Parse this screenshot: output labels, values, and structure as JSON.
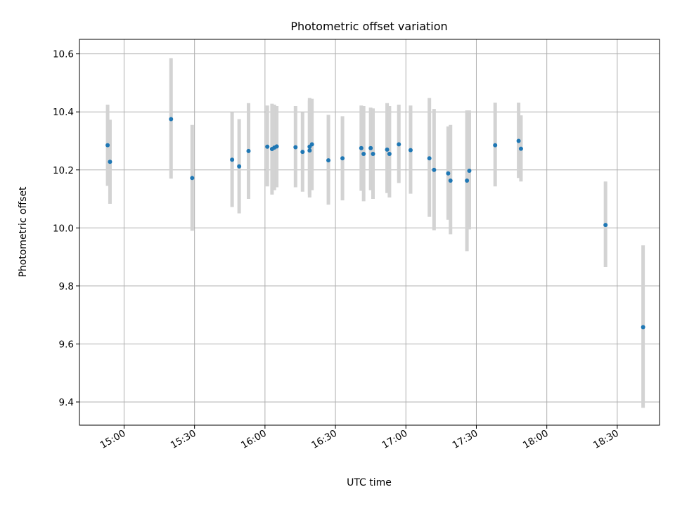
{
  "chart_data": {
    "type": "scatter",
    "title": "Photometric offset variation",
    "xlabel": "UTC time",
    "ylabel": "Photometric offset",
    "x_tick_labels": [
      "15:00",
      "15:30",
      "16:00",
      "16:30",
      "17:00",
      "17:30",
      "18:00",
      "18:30"
    ],
    "y_tick_labels": [
      "9.4",
      "9.6",
      "9.8",
      "10.0",
      "10.2",
      "10.4",
      "10.6"
    ],
    "xlim": [
      "14:41",
      "18:48"
    ],
    "ylim": [
      9.32,
      10.65
    ],
    "grid": true,
    "colors": {
      "point": "#1f77b4",
      "errorbar": "#d3d3d3",
      "grid": "#b0b0b0"
    },
    "points": [
      {
        "x": "14:53",
        "y": 10.285,
        "lo": 10.145,
        "hi": 10.425
      },
      {
        "x": "14:54",
        "y": 10.228,
        "lo": 10.083,
        "hi": 10.373
      },
      {
        "x": "15:20",
        "y": 10.375,
        "lo": 10.17,
        "hi": 10.585
      },
      {
        "x": "15:29",
        "y": 10.172,
        "lo": 9.99,
        "hi": 10.355
      },
      {
        "x": "15:46",
        "y": 10.235,
        "lo": 10.072,
        "hi": 10.4
      },
      {
        "x": "15:49",
        "y": 10.212,
        "lo": 10.05,
        "hi": 10.375
      },
      {
        "x": "15:53",
        "y": 10.265,
        "lo": 10.1,
        "hi": 10.43
      },
      {
        "x": "16:01",
        "y": 10.28,
        "lo": 10.143,
        "hi": 10.422
      },
      {
        "x": "16:03",
        "y": 10.272,
        "lo": 10.115,
        "hi": 10.428
      },
      {
        "x": "16:04",
        "y": 10.277,
        "lo": 10.13,
        "hi": 10.425
      },
      {
        "x": "16:05",
        "y": 10.281,
        "lo": 10.14,
        "hi": 10.42
      },
      {
        "x": "16:13",
        "y": 10.278,
        "lo": 10.14,
        "hi": 10.42
      },
      {
        "x": "16:16",
        "y": 10.262,
        "lo": 10.125,
        "hi": 10.4
      },
      {
        "x": "16:19",
        "y": 10.267,
        "lo": 10.105,
        "hi": 10.448
      },
      {
        "x": "16:19",
        "y": 10.28,
        "lo": 10.115,
        "hi": 10.44
      },
      {
        "x": "16:20",
        "y": 10.288,
        "lo": 10.13,
        "hi": 10.445
      },
      {
        "x": "16:27",
        "y": 10.233,
        "lo": 10.08,
        "hi": 10.39
      },
      {
        "x": "16:33",
        "y": 10.24,
        "lo": 10.095,
        "hi": 10.385
      },
      {
        "x": "16:41",
        "y": 10.275,
        "lo": 10.128,
        "hi": 10.422
      },
      {
        "x": "16:42",
        "y": 10.255,
        "lo": 10.092,
        "hi": 10.42
      },
      {
        "x": "16:45",
        "y": 10.275,
        "lo": 10.13,
        "hi": 10.415
      },
      {
        "x": "16:46",
        "y": 10.255,
        "lo": 10.1,
        "hi": 10.412
      },
      {
        "x": "16:52",
        "y": 10.27,
        "lo": 10.12,
        "hi": 10.43
      },
      {
        "x": "16:53",
        "y": 10.255,
        "lo": 10.105,
        "hi": 10.42
      },
      {
        "x": "16:57",
        "y": 10.288,
        "lo": 10.155,
        "hi": 10.425
      },
      {
        "x": "17:02",
        "y": 10.268,
        "lo": 10.118,
        "hi": 10.422
      },
      {
        "x": "17:10",
        "y": 10.24,
        "lo": 10.038,
        "hi": 10.448
      },
      {
        "x": "17:12",
        "y": 10.2,
        "lo": 9.992,
        "hi": 10.41
      },
      {
        "x": "17:18",
        "y": 10.188,
        "lo": 10.028,
        "hi": 10.35
      },
      {
        "x": "17:19",
        "y": 10.163,
        "lo": 9.978,
        "hi": 10.355
      },
      {
        "x": "17:26",
        "y": 10.163,
        "lo": 9.92,
        "hi": 10.405
      },
      {
        "x": "17:27",
        "y": 10.197,
        "lo": 9.995,
        "hi": 10.405
      },
      {
        "x": "17:38",
        "y": 10.285,
        "lo": 10.143,
        "hi": 10.432
      },
      {
        "x": "17:48",
        "y": 10.3,
        "lo": 10.172,
        "hi": 10.432
      },
      {
        "x": "17:49",
        "y": 10.273,
        "lo": 10.16,
        "hi": 10.388
      },
      {
        "x": "18:25",
        "y": 10.01,
        "lo": 9.865,
        "hi": 10.16
      },
      {
        "x": "18:41",
        "y": 9.658,
        "lo": 9.38,
        "hi": 9.94
      }
    ]
  }
}
